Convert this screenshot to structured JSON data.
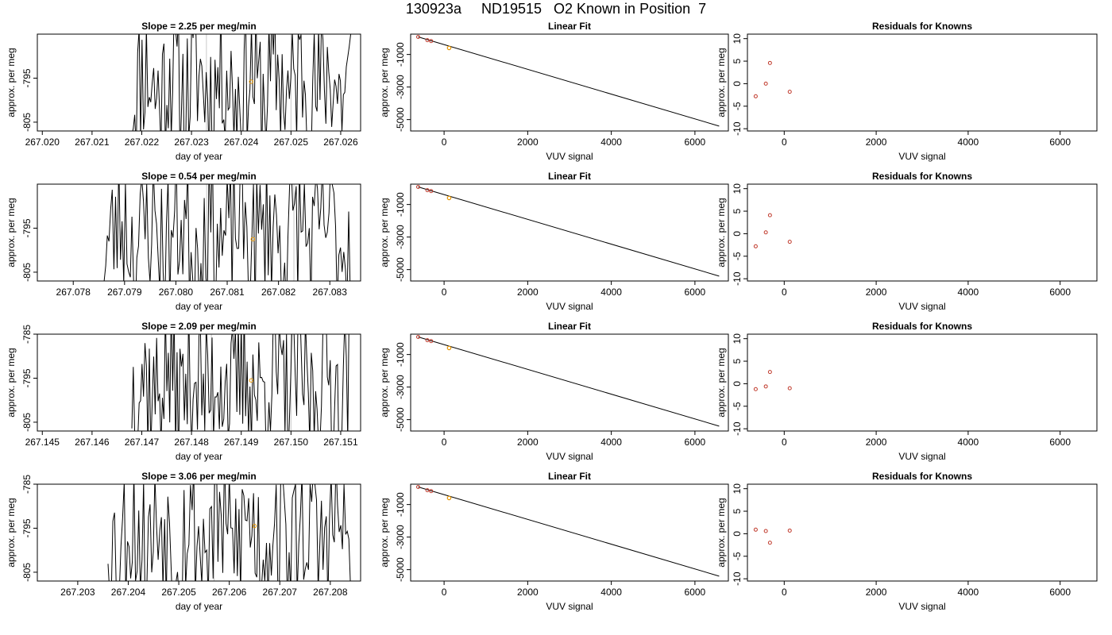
{
  "figure": {
    "title": "130923a     ND19515   O2 Known in Position  7"
  },
  "chart_data": [
    {
      "type": "line",
      "panel": "timeseries",
      "row": 0,
      "title": "Slope =  2.25  per meg/min",
      "xlabel": "day of year",
      "ylabel": "approx. per meg",
      "xlim": [
        267.0199,
        267.0264
      ],
      "ylim": [
        -807,
        -785
      ],
      "xticks": [
        "267.020",
        "267.021",
        "267.022",
        "267.023",
        "267.024",
        "267.025",
        "267.026"
      ],
      "xtick_values": [
        267.02,
        267.021,
        267.022,
        267.023,
        267.024,
        267.025,
        267.026
      ],
      "yticks": [
        "-795",
        "-805"
      ],
      "ytick_values": [
        -795,
        -805
      ],
      "vlines": [
        267.0233,
        267.025
      ],
      "highlight": {
        "x": 267.0242,
        "y": -795.8
      },
      "seed": 11,
      "x_start": 267.0218,
      "x_end": 267.0262
    },
    {
      "type": "line",
      "panel": "timeseries",
      "row": 1,
      "title": "Slope =  0.54  per meg/min",
      "xlabel": "day of year",
      "ylabel": "approx. per meg",
      "xlim": [
        267.0773,
        267.0836
      ],
      "ylim": [
        -807,
        -785
      ],
      "xticks": [
        "267.078",
        "267.079",
        "267.080",
        "267.081",
        "267.082",
        "267.083"
      ],
      "xtick_values": [
        267.078,
        267.079,
        267.08,
        267.081,
        267.082,
        267.083
      ],
      "yticks": [
        "-795",
        "-805"
      ],
      "ytick_values": [
        -795,
        -805
      ],
      "vlines": [
        267.0806,
        267.0823
      ],
      "highlight": {
        "x": 267.0815,
        "y": -797.5
      },
      "seed": 23,
      "x_start": 267.0786,
      "x_end": 267.0834
    },
    {
      "type": "line",
      "panel": "timeseries",
      "row": 2,
      "title": "Slope =  2.09  per meg/min",
      "xlabel": "day of year",
      "ylabel": "approx. per meg",
      "xlim": [
        267.1449,
        267.1514
      ],
      "ylim": [
        -807,
        -785
      ],
      "xticks": [
        "267.145",
        "267.146",
        "267.147",
        "267.148",
        "267.149",
        "267.150",
        "267.151"
      ],
      "xtick_values": [
        267.145,
        267.146,
        267.147,
        267.148,
        267.149,
        267.15,
        267.151
      ],
      "yticks": [
        "-785",
        "-795",
        "-805"
      ],
      "ytick_values": [
        -785,
        -795,
        -805
      ],
      "vlines": [
        267.1484,
        267.15
      ],
      "highlight": {
        "x": 267.1492,
        "y": -795.5
      },
      "seed": 37,
      "x_start": 267.1468,
      "x_end": 267.1512
    },
    {
      "type": "line",
      "panel": "timeseries",
      "row": 3,
      "title": "Slope =  3.06  per meg/min",
      "xlabel": "day of year",
      "ylabel": "approx. per meg",
      "xlim": [
        267.2022,
        267.2086
      ],
      "ylim": [
        -807,
        -785
      ],
      "xticks": [
        "267.203",
        "267.204",
        "267.205",
        "267.206",
        "267.207",
        "267.208"
      ],
      "xtick_values": [
        267.203,
        267.204,
        267.205,
        267.206,
        267.207,
        267.208
      ],
      "yticks": [
        "-785",
        "-795",
        "-805"
      ],
      "ytick_values": [
        -785,
        -795,
        -805
      ],
      "vlines": [
        267.2057,
        267.2073
      ],
      "highlight": {
        "x": 267.2065,
        "y": -794.5
      },
      "seed": 53,
      "x_start": 267.2036,
      "x_end": 267.2084
    },
    {
      "type": "scatter",
      "panel": "fit",
      "row": 0,
      "title": "Linear Fit",
      "xlabel": "VUV signal",
      "ylabel": "approx. per meg",
      "xlim": [
        -800,
        6800
      ],
      "ylim": [
        -5700,
        250
      ],
      "xticks": [
        "0",
        "2000",
        "4000",
        "6000"
      ],
      "xtick_values": [
        0,
        2000,
        4000,
        6000
      ],
      "yticks": [
        "-1000",
        "-3000",
        "-5000"
      ],
      "ytick_values": [
        -1000,
        -3000,
        -5000
      ],
      "points": [
        {
          "x": -620,
          "y": 80
        },
        {
          "x": -400,
          "y": -120
        },
        {
          "x": -310,
          "y": -175
        }
      ],
      "highlight": {
        "x": 120,
        "y": -600
      },
      "line": [
        [
          -620,
          80
        ],
        [
          6580,
          -5400
        ]
      ]
    },
    {
      "type": "scatter",
      "panel": "fit",
      "row": 1,
      "title": "Linear Fit",
      "xlabel": "VUV signal",
      "ylabel": "approx. per meg",
      "xlim": [
        -800,
        6800
      ],
      "ylim": [
        -5700,
        250
      ],
      "xticks": [
        "0",
        "2000",
        "4000",
        "6000"
      ],
      "xtick_values": [
        0,
        2000,
        4000,
        6000
      ],
      "yticks": [
        "-1000",
        "-3000",
        "-5000"
      ],
      "ytick_values": [
        -1000,
        -3000,
        -5000
      ],
      "points": [
        {
          "x": -620,
          "y": 80
        },
        {
          "x": -400,
          "y": -120
        },
        {
          "x": -310,
          "y": -175
        }
      ],
      "highlight": {
        "x": 120,
        "y": -600
      },
      "line": [
        [
          -620,
          80
        ],
        [
          6580,
          -5400
        ]
      ]
    },
    {
      "type": "scatter",
      "panel": "fit",
      "row": 2,
      "title": "Linear Fit",
      "xlabel": "VUV signal",
      "ylabel": "approx. per meg",
      "xlim": [
        -800,
        6800
      ],
      "ylim": [
        -5700,
        250
      ],
      "xticks": [
        "0",
        "2000",
        "4000",
        "6000"
      ],
      "xtick_values": [
        0,
        2000,
        4000,
        6000
      ],
      "yticks": [
        "-1000",
        "-3000",
        "-5000"
      ],
      "ytick_values": [
        -1000,
        -3000,
        -5000
      ],
      "points": [
        {
          "x": -620,
          "y": 80
        },
        {
          "x": -400,
          "y": -120
        },
        {
          "x": -310,
          "y": -175
        }
      ],
      "highlight": {
        "x": 120,
        "y": -600
      },
      "line": [
        [
          -620,
          80
        ],
        [
          6580,
          -5400
        ]
      ]
    },
    {
      "type": "scatter",
      "panel": "fit",
      "row": 3,
      "title": "Linear Fit",
      "xlabel": "VUV signal",
      "ylabel": "approx. per meg",
      "xlim": [
        -800,
        6800
      ],
      "ylim": [
        -5700,
        250
      ],
      "xticks": [
        "0",
        "2000",
        "4000",
        "6000"
      ],
      "xtick_values": [
        0,
        2000,
        4000,
        6000
      ],
      "yticks": [
        "-1000",
        "-3000",
        "-5000"
      ],
      "ytick_values": [
        -1000,
        -3000,
        -5000
      ],
      "points": [
        {
          "x": -620,
          "y": 80
        },
        {
          "x": -400,
          "y": -120
        },
        {
          "x": -310,
          "y": -175
        }
      ],
      "highlight": {
        "x": 120,
        "y": -600
      },
      "line": [
        [
          -620,
          80
        ],
        [
          6580,
          -5400
        ]
      ]
    },
    {
      "type": "scatter",
      "panel": "resid",
      "row": 0,
      "title": "Residuals for Knowns",
      "xlabel": "VUV signal",
      "ylabel": "approx. per meg",
      "xlim": [
        -800,
        6800
      ],
      "ylim": [
        -10.5,
        11
      ],
      "xticks": [
        "0",
        "2000",
        "4000",
        "6000"
      ],
      "xtick_values": [
        0,
        2000,
        4000,
        6000
      ],
      "yticks": [
        "10",
        "5",
        "0",
        "-5",
        "-10"
      ],
      "ytick_values": [
        10,
        5,
        0,
        -5,
        -10
      ],
      "points": [
        {
          "x": -620,
          "y": -2.8
        },
        {
          "x": -400,
          "y": 0
        },
        {
          "x": -310,
          "y": 4.6
        },
        {
          "x": 120,
          "y": -1.8
        }
      ]
    },
    {
      "type": "scatter",
      "panel": "resid",
      "row": 1,
      "title": "Residuals for Knowns",
      "xlabel": "VUV signal",
      "ylabel": "approx. per meg",
      "xlim": [
        -800,
        6800
      ],
      "ylim": [
        -10.5,
        11
      ],
      "xticks": [
        "0",
        "2000",
        "4000",
        "6000"
      ],
      "xtick_values": [
        0,
        2000,
        4000,
        6000
      ],
      "yticks": [
        "10",
        "5",
        "0",
        "-5",
        "-10"
      ],
      "ytick_values": [
        10,
        5,
        0,
        -5,
        -10
      ],
      "points": [
        {
          "x": -620,
          "y": -2.8
        },
        {
          "x": -400,
          "y": 0.3
        },
        {
          "x": -310,
          "y": 4.1
        },
        {
          "x": 120,
          "y": -1.8
        }
      ]
    },
    {
      "type": "scatter",
      "panel": "resid",
      "row": 2,
      "title": "Residuals for Knowns",
      "xlabel": "VUV signal",
      "ylabel": "approx. per meg",
      "xlim": [
        -800,
        6800
      ],
      "ylim": [
        -10.5,
        11
      ],
      "xticks": [
        "0",
        "2000",
        "4000",
        "6000"
      ],
      "xtick_values": [
        0,
        2000,
        4000,
        6000
      ],
      "yticks": [
        "10",
        "5",
        "0",
        "-5",
        "-10"
      ],
      "ytick_values": [
        10,
        5,
        0,
        -5,
        -10
      ],
      "points": [
        {
          "x": -620,
          "y": -1.2
        },
        {
          "x": -400,
          "y": -0.6
        },
        {
          "x": -310,
          "y": 2.6
        },
        {
          "x": 120,
          "y": -1.0
        }
      ]
    },
    {
      "type": "scatter",
      "panel": "resid",
      "row": 3,
      "title": "Residuals for Knowns",
      "xlabel": "VUV signal",
      "ylabel": "approx. per meg",
      "xlim": [
        -800,
        6800
      ],
      "ylim": [
        -10.5,
        11
      ],
      "xticks": [
        "0",
        "2000",
        "4000",
        "6000"
      ],
      "xtick_values": [
        0,
        2000,
        4000,
        6000
      ],
      "yticks": [
        "10",
        "5",
        "0",
        "-5",
        "-10"
      ],
      "ytick_values": [
        10,
        5,
        0,
        -5,
        -10
      ],
      "points": [
        {
          "x": -620,
          "y": 0.9
        },
        {
          "x": -400,
          "y": 0.6
        },
        {
          "x": -310,
          "y": -2.0
        },
        {
          "x": 120,
          "y": 0.7
        }
      ]
    }
  ],
  "colors": {
    "point": "#c0392b",
    "highlight": "#e69500",
    "axis": "#000000",
    "vline": "#c8c8c8",
    "line": "#000000"
  }
}
